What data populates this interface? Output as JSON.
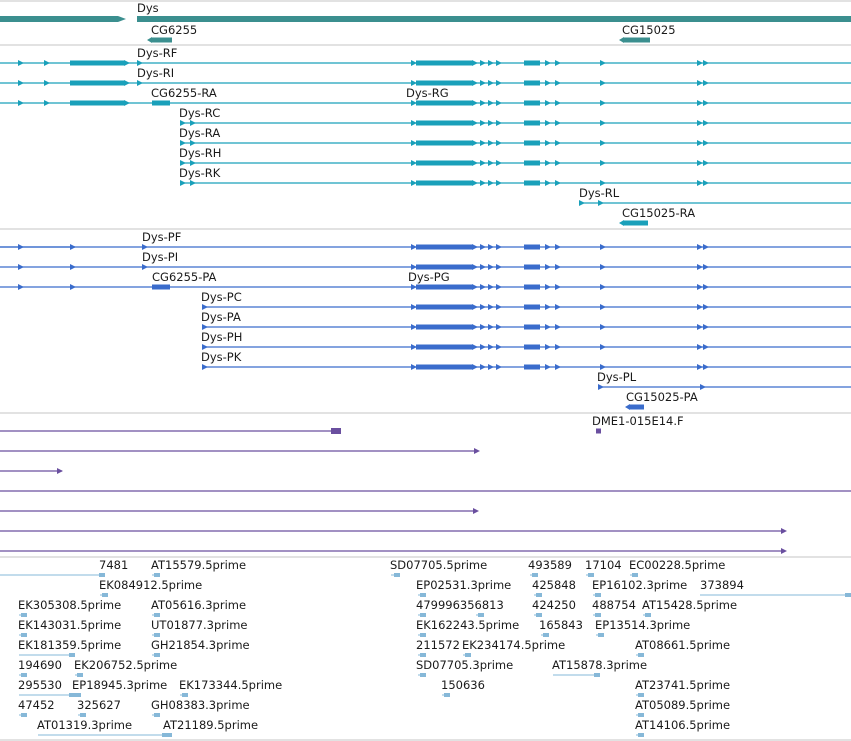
{
  "colors": {
    "gene": "#3b8f8f",
    "rna": "#1aa0ba",
    "protein": "#3a6ccc",
    "cdna": "#6a4f9f",
    "est": "#86b8d8",
    "divider": "#c4c4c4"
  },
  "tracks": {
    "genes": [
      {
        "label": "Dys"
      },
      {
        "label": "CG6255"
      },
      {
        "label": "CG15025"
      }
    ],
    "transcripts": [
      {
        "label": "Dys-RF"
      },
      {
        "label": "Dys-RI"
      },
      {
        "label": "CG6255-RA"
      },
      {
        "label": "Dys-RG"
      },
      {
        "label": "Dys-RC"
      },
      {
        "label": "Dys-RA"
      },
      {
        "label": "Dys-RH"
      },
      {
        "label": "Dys-RK"
      },
      {
        "label": "Dys-RL"
      },
      {
        "label": "CG15025-RA"
      }
    ],
    "proteins": [
      {
        "label": "Dys-PF"
      },
      {
        "label": "Dys-PI"
      },
      {
        "label": "CG6255-PA"
      },
      {
        "label": "Dys-PG"
      },
      {
        "label": "Dys-PC"
      },
      {
        "label": "Dys-PA"
      },
      {
        "label": "Dys-PH"
      },
      {
        "label": "Dys-PK"
      },
      {
        "label": "Dys-PL"
      },
      {
        "label": "CG15025-PA"
      }
    ],
    "cdnas": [
      {
        "label": "DME1-015E14.F"
      }
    ],
    "ests": [
      {
        "label": "7481"
      },
      {
        "label": "AT15579.5prime"
      },
      {
        "label": "SD07705.5prime"
      },
      {
        "label": "493589"
      },
      {
        "label": "17104"
      },
      {
        "label": "EC00228.5prime"
      },
      {
        "label": "EK084912.5prime"
      },
      {
        "label": "EP02531.3prime"
      },
      {
        "label": "425848"
      },
      {
        "label": "EP16102.3prime"
      },
      {
        "label": "373894"
      },
      {
        "label": "EK305308.5prime"
      },
      {
        "label": "AT05616.3prime"
      },
      {
        "label": "479996356813"
      },
      {
        "label": "424250"
      },
      {
        "label": "488754"
      },
      {
        "label": "AT15428.5prime"
      },
      {
        "label": "EK143031.5prime"
      },
      {
        "label": "UT01877.3prime"
      },
      {
        "label": "EK162243.5prime"
      },
      {
        "label": "165843"
      },
      {
        "label": "EP13514.3prime"
      },
      {
        "label": "EK181359.5prime"
      },
      {
        "label": "GH21854.3prime"
      },
      {
        "label": "211572"
      },
      {
        "label": "EK234174.5prime"
      },
      {
        "label": "AT08661.5prime"
      },
      {
        "label": "194690"
      },
      {
        "label": "EK206752.5prime"
      },
      {
        "label": "SD07705.3prime"
      },
      {
        "label": "AT15878.3prime"
      },
      {
        "label": "295530"
      },
      {
        "label": "EP18945.3prime"
      },
      {
        "label": "EK173344.5prime"
      },
      {
        "label": "150636"
      },
      {
        "label": "AT23741.5prime"
      },
      {
        "label": "47452"
      },
      {
        "label": "325627"
      },
      {
        "label": "GH08383.3prime"
      },
      {
        "label": "AT05089.5prime"
      },
      {
        "label": "AT01319.3prime"
      },
      {
        "label": "AT21189.5prime"
      },
      {
        "label": "AT14106.5prime"
      }
    ]
  }
}
